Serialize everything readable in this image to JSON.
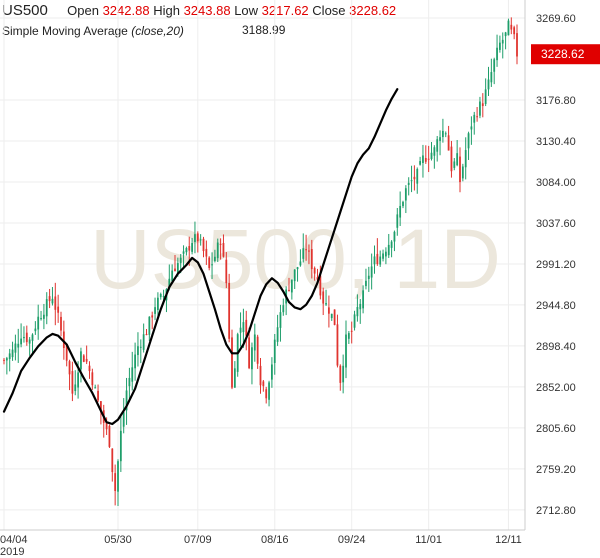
{
  "header": {
    "symbol": "US500",
    "open_label": "Open",
    "open_value": "3242.88",
    "high_label": "High",
    "high_value": "3243.88",
    "low_label": "Low",
    "low_value": "3217.62",
    "close_label": "Close",
    "close_value": "3228.62",
    "sma_label": "Simple Moving Average",
    "sma_params": "(close,20)",
    "sma_value": "3188.99"
  },
  "watermark": "US500, 1D",
  "colors": {
    "up": "#1e9e6a",
    "down": "#e0342f",
    "sma": "#000000",
    "tag": "#e00000",
    "grid": "#eeeeee"
  },
  "chart_data": {
    "type": "candlestick",
    "ylim": [
      2690,
      3290
    ],
    "y_ticks": [
      "3269.60",
      "3176.80",
      "3130.40",
      "3084.00",
      "3037.60",
      "2991.20",
      "2944.80",
      "2898.40",
      "2852.00",
      "2805.60",
      "2759.20",
      "2712.80"
    ],
    "x_ticks": [
      {
        "label": "04/04",
        "sub": "2019",
        "day": 0
      },
      {
        "label": "05/30",
        "sub": "",
        "day": 40
      },
      {
        "label": "07/09",
        "sub": "",
        "day": 68
      },
      {
        "label": "08/16",
        "sub": "",
        "day": 95
      },
      {
        "label": "09/24",
        "sub": "",
        "day": 122
      },
      {
        "label": "11/01",
        "sub": "",
        "day": 149
      },
      {
        "label": "12/11",
        "sub": "",
        "day": 177
      }
    ],
    "last_price": "3228.62",
    "close_path": [
      [
        0,
        2882
      ],
      [
        3,
        2892
      ],
      [
        6,
        2912
      ],
      [
        9,
        2905
      ],
      [
        12,
        2930
      ],
      [
        15,
        2945
      ],
      [
        17,
        2955
      ],
      [
        19,
        2930
      ],
      [
        22,
        2885
      ],
      [
        24,
        2845
      ],
      [
        27,
        2890
      ],
      [
        29,
        2880
      ],
      [
        31,
        2860
      ],
      [
        33,
        2835
      ],
      [
        35,
        2812
      ],
      [
        37,
        2790
      ],
      [
        38,
        2760
      ],
      [
        39,
        2735
      ],
      [
        41,
        2800
      ],
      [
        43,
        2848
      ],
      [
        45,
        2875
      ],
      [
        47,
        2898
      ],
      [
        50,
        2915
      ],
      [
        53,
        2945
      ],
      [
        56,
        2955
      ],
      [
        59,
        2985
      ],
      [
        62,
        2995
      ],
      [
        64,
        3005
      ],
      [
        66,
        3018
      ],
      [
        68,
        3020
      ],
      [
        70,
        3005
      ],
      [
        72,
        2985
      ],
      [
        74,
        3000
      ],
      [
        76,
        3020
      ],
      [
        78,
        2970
      ],
      [
        80,
        2850
      ],
      [
        82,
        2910
      ],
      [
        84,
        2930
      ],
      [
        86,
        2880
      ],
      [
        88,
        2910
      ],
      [
        90,
        2860
      ],
      [
        92,
        2845
      ],
      [
        94,
        2880
      ],
      [
        96,
        2920
      ],
      [
        98,
        2950
      ],
      [
        101,
        2975
      ],
      [
        104,
        2995
      ],
      [
        106,
        3010
      ],
      [
        108,
        2990
      ],
      [
        110,
        2975
      ],
      [
        112,
        2950
      ],
      [
        114,
        2940
      ],
      [
        116,
        2925
      ],
      [
        117,
        2880
      ],
      [
        118,
        2860
      ],
      [
        120,
        2905
      ],
      [
        122,
        2915
      ],
      [
        124,
        2940
      ],
      [
        126,
        2955
      ],
      [
        128,
        2980
      ],
      [
        130,
        2995
      ],
      [
        132,
        3000
      ],
      [
        135,
        3015
      ],
      [
        137,
        3030
      ],
      [
        139,
        3055
      ],
      [
        141,
        3075
      ],
      [
        143,
        3085
      ],
      [
        145,
        3092
      ],
      [
        147,
        3110
      ],
      [
        149,
        3115
      ],
      [
        151,
        3120
      ],
      [
        153,
        3140
      ],
      [
        155,
        3142
      ],
      [
        157,
        3100
      ],
      [
        159,
        3110
      ],
      [
        160,
        3085
      ],
      [
        162,
        3120
      ],
      [
        164,
        3150
      ],
      [
        166,
        3165
      ],
      [
        168,
        3175
      ],
      [
        170,
        3195
      ],
      [
        172,
        3220
      ],
      [
        174,
        3240
      ],
      [
        176,
        3250
      ],
      [
        177,
        3260
      ],
      [
        179,
        3245
      ],
      [
        180,
        3229
      ]
    ],
    "sma_path": [
      [
        0,
        2824
      ],
      [
        3,
        2845
      ],
      [
        6,
        2870
      ],
      [
        9,
        2885
      ],
      [
        12,
        2898
      ],
      [
        15,
        2908
      ],
      [
        17,
        2912
      ],
      [
        19,
        2910
      ],
      [
        22,
        2900
      ],
      [
        25,
        2880
      ],
      [
        28,
        2862
      ],
      [
        31,
        2845
      ],
      [
        34,
        2825
      ],
      [
        36,
        2812
      ],
      [
        38,
        2810
      ],
      [
        40,
        2815
      ],
      [
        43,
        2830
      ],
      [
        46,
        2850
      ],
      [
        49,
        2880
      ],
      [
        52,
        2910
      ],
      [
        55,
        2940
      ],
      [
        58,
        2965
      ],
      [
        61,
        2980
      ],
      [
        64,
        2990
      ],
      [
        66,
        2998
      ],
      [
        68,
        2993
      ],
      [
        70,
        2980
      ],
      [
        72,
        2960
      ],
      [
        74,
        2940
      ],
      [
        76,
        2918
      ],
      [
        78,
        2900
      ],
      [
        80,
        2890
      ],
      [
        82,
        2890
      ],
      [
        84,
        2900
      ],
      [
        86,
        2915
      ],
      [
        88,
        2935
      ],
      [
        90,
        2955
      ],
      [
        92,
        2968
      ],
      [
        94,
        2975
      ],
      [
        96,
        2970
      ],
      [
        98,
        2960
      ],
      [
        100,
        2948
      ],
      [
        102,
        2942
      ],
      [
        104,
        2940
      ],
      [
        106,
        2945
      ],
      [
        108,
        2955
      ],
      [
        110,
        2970
      ],
      [
        112,
        2990
      ],
      [
        114,
        3010
      ],
      [
        116,
        3030
      ],
      [
        118,
        3050
      ],
      [
        120,
        3070
      ],
      [
        122,
        3090
      ],
      [
        124,
        3105
      ],
      [
        126,
        3115
      ],
      [
        128,
        3122
      ],
      [
        130,
        3135
      ],
      [
        132,
        3150
      ],
      [
        134,
        3165
      ],
      [
        136,
        3178
      ],
      [
        138,
        3189
      ]
    ]
  }
}
